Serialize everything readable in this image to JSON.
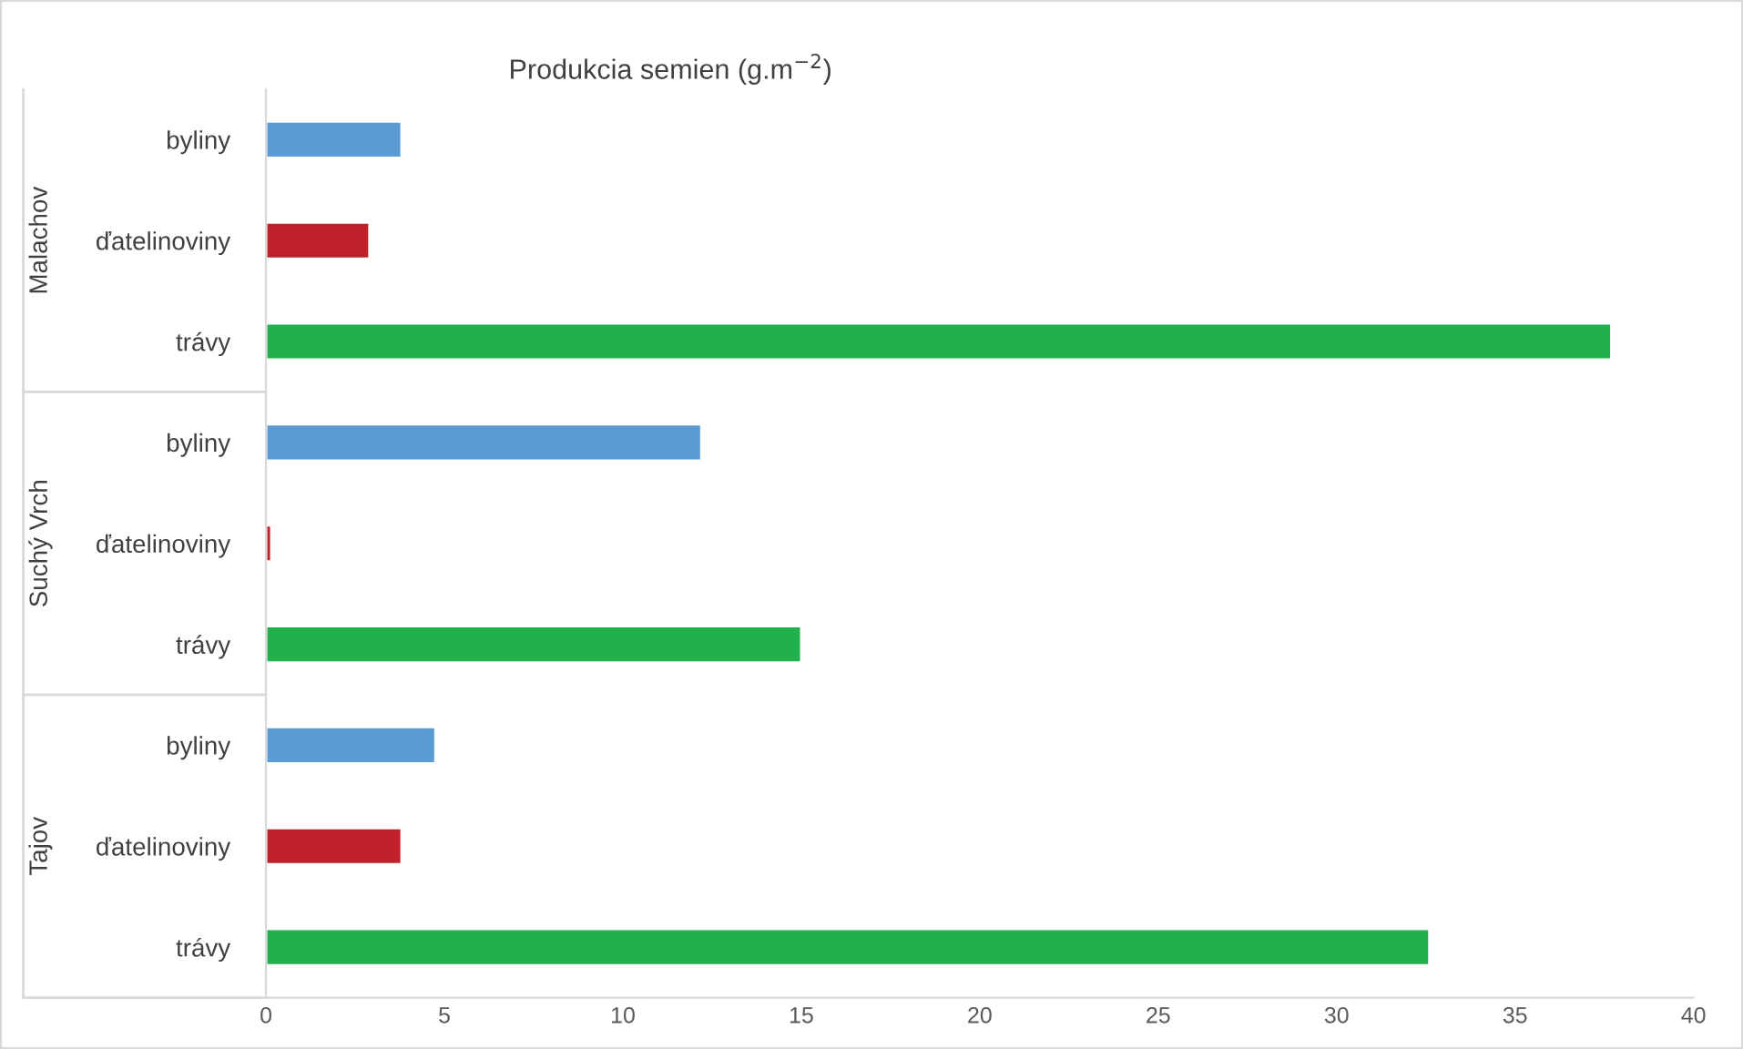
{
  "chart_data": {
    "type": "bar",
    "orientation": "horizontal",
    "title": "Produkcia semien (g.m$^{−2}$)",
    "categories": [
      "byliny",
      "ďatelinoviny",
      "trávy",
      "byliny",
      "ďatelinoviny",
      "trávy",
      "byliny",
      "ďatelinoviny",
      "trávy"
    ],
    "values": [
      3.8,
      2.9,
      37.7,
      12.2,
      0.15,
      15.0,
      4.75,
      3.8,
      32.6
    ],
    "colors": [
      "#5b9bd5",
      "#c0202a",
      "#21b04b",
      "#5b9bd5",
      "#c0202a",
      "#21b04b",
      "#5b9bd5",
      "#c0202a",
      "#21b04b"
    ],
    "annotations": [
      "Malachov",
      "Suchý Vrch",
      "Tajov"
    ],
    "xlim": [
      0,
      40
    ],
    "xticks": [
      0,
      5,
      10,
      15,
      20,
      25,
      30,
      35,
      40
    ],
    "grid": false,
    "legend": false
  }
}
